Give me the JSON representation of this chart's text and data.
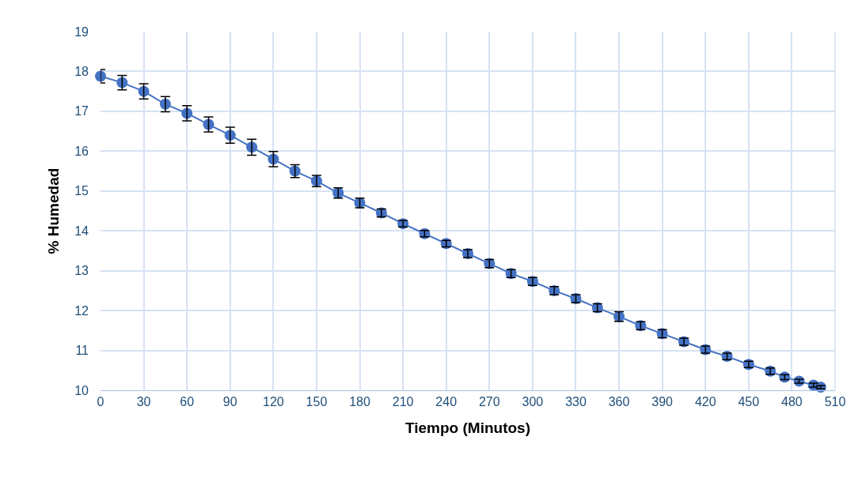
{
  "chart_data": {
    "type": "line",
    "xlabel": "Tiempo (Minutos)",
    "ylabel": "% Humedad",
    "x": [
      0,
      15,
      30,
      45,
      60,
      75,
      90,
      105,
      120,
      135,
      150,
      165,
      180,
      195,
      210,
      225,
      240,
      255,
      270,
      285,
      300,
      315,
      330,
      345,
      360,
      375,
      390,
      405,
      420,
      435,
      450,
      465,
      475,
      485,
      495,
      500
    ],
    "series": [
      {
        "color": "#4472c4",
        "values": [
          17.88,
          17.72,
          17.5,
          17.18,
          16.95,
          16.67,
          16.4,
          16.1,
          15.8,
          15.5,
          15.25,
          14.95,
          14.7,
          14.45,
          14.18,
          13.93,
          13.68,
          13.43,
          13.18,
          12.93,
          12.73,
          12.5,
          12.3,
          12.07,
          11.85,
          11.62,
          11.42,
          11.22,
          11.02,
          10.85,
          10.65,
          10.48,
          10.33,
          10.23,
          10.13,
          10.08
        ],
        "errors": [
          0.17,
          0.18,
          0.19,
          0.19,
          0.19,
          0.19,
          0.2,
          0.2,
          0.19,
          0.16,
          0.14,
          0.13,
          0.12,
          0.1,
          0.08,
          0.08,
          0.08,
          0.1,
          0.1,
          0.1,
          0.1,
          0.1,
          0.1,
          0.1,
          0.12,
          0.1,
          0.1,
          0.09,
          0.09,
          0.08,
          0.08,
          0.08,
          0.06,
          0.05,
          0.05,
          0.04
        ]
      }
    ],
    "xlim": [
      0,
      510
    ],
    "xticks": [
      0,
      30,
      60,
      90,
      120,
      150,
      180,
      210,
      240,
      270,
      300,
      330,
      360,
      390,
      420,
      450,
      480,
      510
    ],
    "ylim": [
      10,
      19
    ],
    "yticks": [
      10,
      11,
      12,
      13,
      14,
      15,
      16,
      17,
      18,
      19
    ],
    "grid": true,
    "marker": "circle",
    "line_style": "solid"
  }
}
